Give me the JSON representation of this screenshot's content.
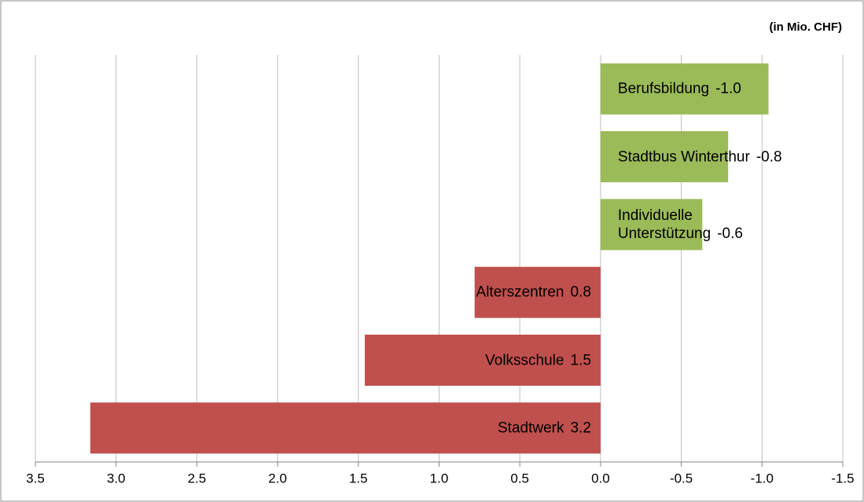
{
  "chart_data": {
    "type": "barh",
    "annotation": "(in Mio. CHF)",
    "categories": [
      "Berufsbildung",
      "Stadtbus Winterthur",
      "Individuelle\nUnterstützung",
      "Alterszentren",
      "Volksschule",
      "Stadtwerk"
    ],
    "values": [
      -1.04,
      -0.79,
      -0.63,
      0.78,
      1.46,
      3.16
    ],
    "value_labels": [
      "-1.0",
      "-0.8",
      "-0.6",
      "0.8",
      "1.5",
      "3.2"
    ],
    "colors": [
      "#9bbb59",
      "#9bbb59",
      "#9bbb59",
      "#c0504d",
      "#c0504d",
      "#c0504d"
    ],
    "xlim": [
      3.5,
      -1.5
    ],
    "xticks": [
      3.5,
      {
        "value": 3,
        "label": "3.0"
      },
      2.5,
      {
        "value": 2,
        "label": "2.0"
      },
      1.5,
      {
        "value": 1,
        "label": "1.0"
      },
      0.5,
      {
        "value": 0,
        "label": "0.0"
      },
      -0.5,
      {
        "value": -1,
        "label": "-1.0"
      },
      -1.5
    ],
    "grid": true
  }
}
